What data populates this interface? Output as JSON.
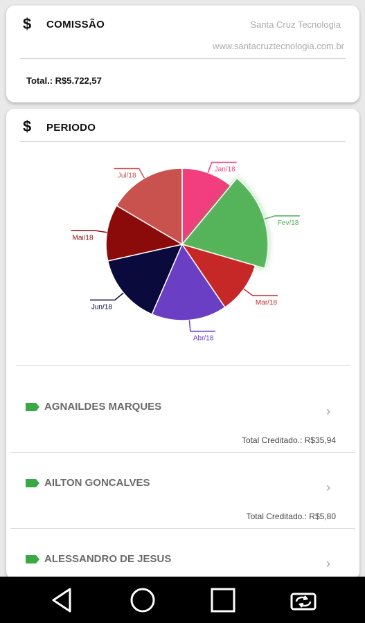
{
  "commission": {
    "title": "COMISSÃO",
    "currency_icon": "dollar-icon",
    "company": "Santa Cruz Tecnologia",
    "website": "www.santacruztecnologia.com.br",
    "total": "Total.: R$5.722,57"
  },
  "period": {
    "title": "PERIODO",
    "currency_icon": "dollar-icon"
  },
  "chart_data": {
    "type": "pie",
    "categories": [
      "Jan/18",
      "Fev/18",
      "Mar/18",
      "Abr/18",
      "Jun/18",
      "Mai/18",
      "Jul/18"
    ],
    "values": [
      11,
      18.5,
      11,
      16,
      15,
      12,
      16.5
    ],
    "colors": [
      "#f23d7e",
      "#4caf50",
      "#c62828",
      "#6a3fc4",
      "#0a0a3c",
      "#8b0a0a",
      "#c9524e"
    ],
    "highlighted": "Fev/18"
  },
  "items": [
    {
      "name": "AGNAILDES MARQUES",
      "total": "Total Creditado.: R$35,94"
    },
    {
      "name": "AILTON GONCALVES",
      "total": "Total Creditado.: R$5,80"
    },
    {
      "name": "ALESSANDRO DE JESUS",
      "total": ""
    }
  ],
  "icons": {
    "item_tag": "tag-icon",
    "item_chevron": "chevron-right-icon"
  },
  "colors": {
    "tag": "#3aa845"
  },
  "navbar": {
    "back": "back-icon",
    "home": "home-icon",
    "recents": "recents-icon",
    "rotate": "rotate-icon"
  }
}
